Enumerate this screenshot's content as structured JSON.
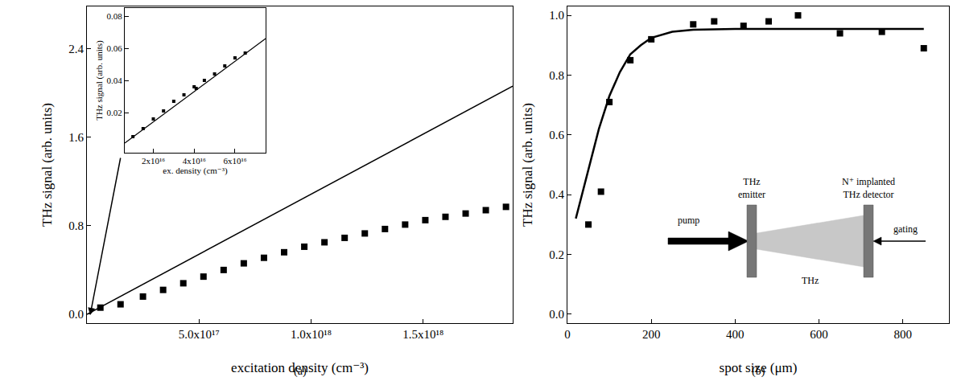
{
  "chart_data": [
    {
      "type": "scatter",
      "title": "(a)",
      "x_label": "excitation density (cm⁻³)",
      "y_label": "THz signal (arb. units)",
      "xlim": [
        0,
        1.9e+18
      ],
      "ylim": [
        -0.08,
        2.78
      ],
      "xticks": [
        {
          "value": 5e+17,
          "label": "5.0x10¹⁷"
        },
        {
          "value": 1e+18,
          "label": "1.0x10¹⁸"
        },
        {
          "value": 1.5e+18,
          "label": "1.5x10¹⁸"
        }
      ],
      "yticks": [
        {
          "value": 0,
          "label": "0.0"
        },
        0.8,
        1.6,
        2.4
      ],
      "grid": false,
      "series": [
        {
          "type": "scatter",
          "marker": "square",
          "color": "#000000",
          "x": [
            6e+16,
            1.5e+17,
            2.5e+17,
            3.4e+17,
            4.3e+17,
            5.2e+17,
            6.1e+17,
            7e+17,
            7.9e+17,
            8.8e+17,
            9.7e+17,
            1.06e+18,
            1.15e+18,
            1.24e+18,
            1.33e+18,
            1.42e+18,
            1.51e+18,
            1.6e+18,
            1.69e+18,
            1.78e+18,
            1.87e+18
          ],
          "values": [
            0.06,
            0.09,
            0.16,
            0.22,
            0.28,
            0.34,
            0.4,
            0.46,
            0.51,
            0.56,
            0.61,
            0.65,
            0.69,
            0.73,
            0.77,
            0.81,
            0.85,
            0.88,
            0.91,
            0.94,
            0.97
          ]
        },
        {
          "type": "line",
          "line_style": "solid",
          "color": "#000000",
          "x": [
            0,
            1.9e+18
          ],
          "values": [
            0,
            2.06
          ]
        }
      ]
    },
    {
      "type": "scatter",
      "x_label": "ex. density (cm⁻³)",
      "y_label": "THz signal (arb. units)",
      "xlim": [
        6000000000000000.0,
        7.5e+16
      ],
      "ylim": [
        -0.005,
        0.085
      ],
      "xticks": [
        {
          "value": 2e+16,
          "label": "2x10¹⁶"
        },
        {
          "value": 4e+16,
          "label": "4x10¹⁶"
        },
        {
          "value": 6e+16,
          "label": "6x10¹⁶"
        }
      ],
      "yticks": [
        0.02,
        0.04,
        0.06,
        0.08
      ],
      "grid": false,
      "series": [
        {
          "type": "scatter",
          "marker": "square",
          "color": "#000000",
          "x": [
            1e+16,
            1.5e+16,
            2e+16,
            2.5e+16,
            3e+16,
            3.5e+16,
            4e+16,
            4.1e+16,
            4.5e+16,
            5e+16,
            5.5e+16,
            6e+16,
            6.5e+16
          ],
          "values": [
            0.005,
            0.01,
            0.016,
            0.021,
            0.027,
            0.031,
            0.036,
            0.035,
            0.04,
            0.044,
            0.049,
            0.054,
            0.057
          ]
        },
        {
          "type": "line",
          "line_style": "solid",
          "color": "#000000",
          "x": [
            6000000000000000.0,
            7.5e+16
          ],
          "values": [
            0.001,
            0.066
          ]
        }
      ]
    },
    {
      "type": "scatter",
      "title": "(b)",
      "x_label": "spot size (μm)",
      "y_label": "THz signal (arb. units)",
      "xlim": [
        0,
        910
      ],
      "ylim": [
        -0.03,
        1.03
      ],
      "xticks": [
        0,
        200,
        400,
        600,
        800
      ],
      "yticks": [
        {
          "value": 0,
          "label": "0.0"
        },
        0.2,
        0.4,
        0.6,
        0.8,
        {
          "value": 1,
          "label": "1.0"
        }
      ],
      "grid": false,
      "annotations": [
        "pump",
        "THz emitter",
        "N⁺ implanted THz detector",
        "THz",
        "gating"
      ],
      "series": [
        {
          "type": "scatter",
          "marker": "square",
          "color": "#000000",
          "x": [
            50,
            80,
            100,
            150,
            200,
            300,
            350,
            420,
            480,
            550,
            650,
            750,
            850
          ],
          "values": [
            0.3,
            0.41,
            0.71,
            0.85,
            0.92,
            0.97,
            0.98,
            0.965,
            0.98,
            1.0,
            0.94,
            0.945,
            0.89
          ]
        },
        {
          "type": "line",
          "line_style": "solid",
          "color": "#000000",
          "x": [
            20,
            50,
            75,
            100,
            125,
            150,
            175,
            200,
            250,
            300,
            400,
            500,
            600,
            700,
            800,
            850
          ],
          "values": [
            0.32,
            0.48,
            0.62,
            0.73,
            0.81,
            0.87,
            0.9,
            0.925,
            0.945,
            0.952,
            0.955,
            0.955,
            0.955,
            0.955,
            0.955,
            0.955
          ]
        }
      ]
    }
  ]
}
